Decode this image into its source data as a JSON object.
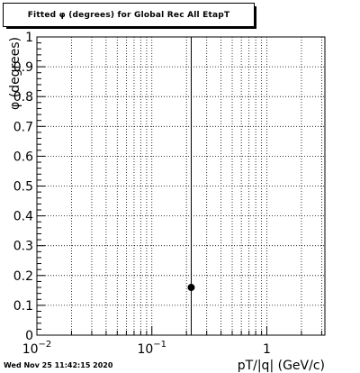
{
  "timestamp": "Wed Nov 25 11:42:15 2020",
  "chart_data": {
    "type": "scatter",
    "title": "Fitted φ (degrees) for Global Rec All EtapT",
    "xlabel": "pT/|q| (GeV/c)",
    "ylabel": "φ (degrees)",
    "xscale": "log",
    "xlim": [
      0.01,
      3.2
    ],
    "ylim": [
      0,
      1
    ],
    "grid": true,
    "x_tick_labels": [
      {
        "value": 0.01,
        "base": "10",
        "exp": "−2"
      },
      {
        "value": 0.1,
        "base": "10",
        "exp": "−1"
      },
      {
        "value": 1,
        "base": "1",
        "exp": ""
      }
    ],
    "y_ticks": [
      0,
      0.1,
      0.2,
      0.3,
      0.4,
      0.5,
      0.6,
      0.7,
      0.8,
      0.9,
      1
    ],
    "y_tick_labels": [
      "0",
      "0.1",
      "0.2",
      "0.3",
      "0.4",
      "0.5",
      "0.6",
      "0.7",
      "0.8",
      "0.9",
      "1"
    ],
    "vertical_line": {
      "x": 0.22
    },
    "points": [
      {
        "x": 0.22,
        "y": 0.16
      }
    ]
  }
}
